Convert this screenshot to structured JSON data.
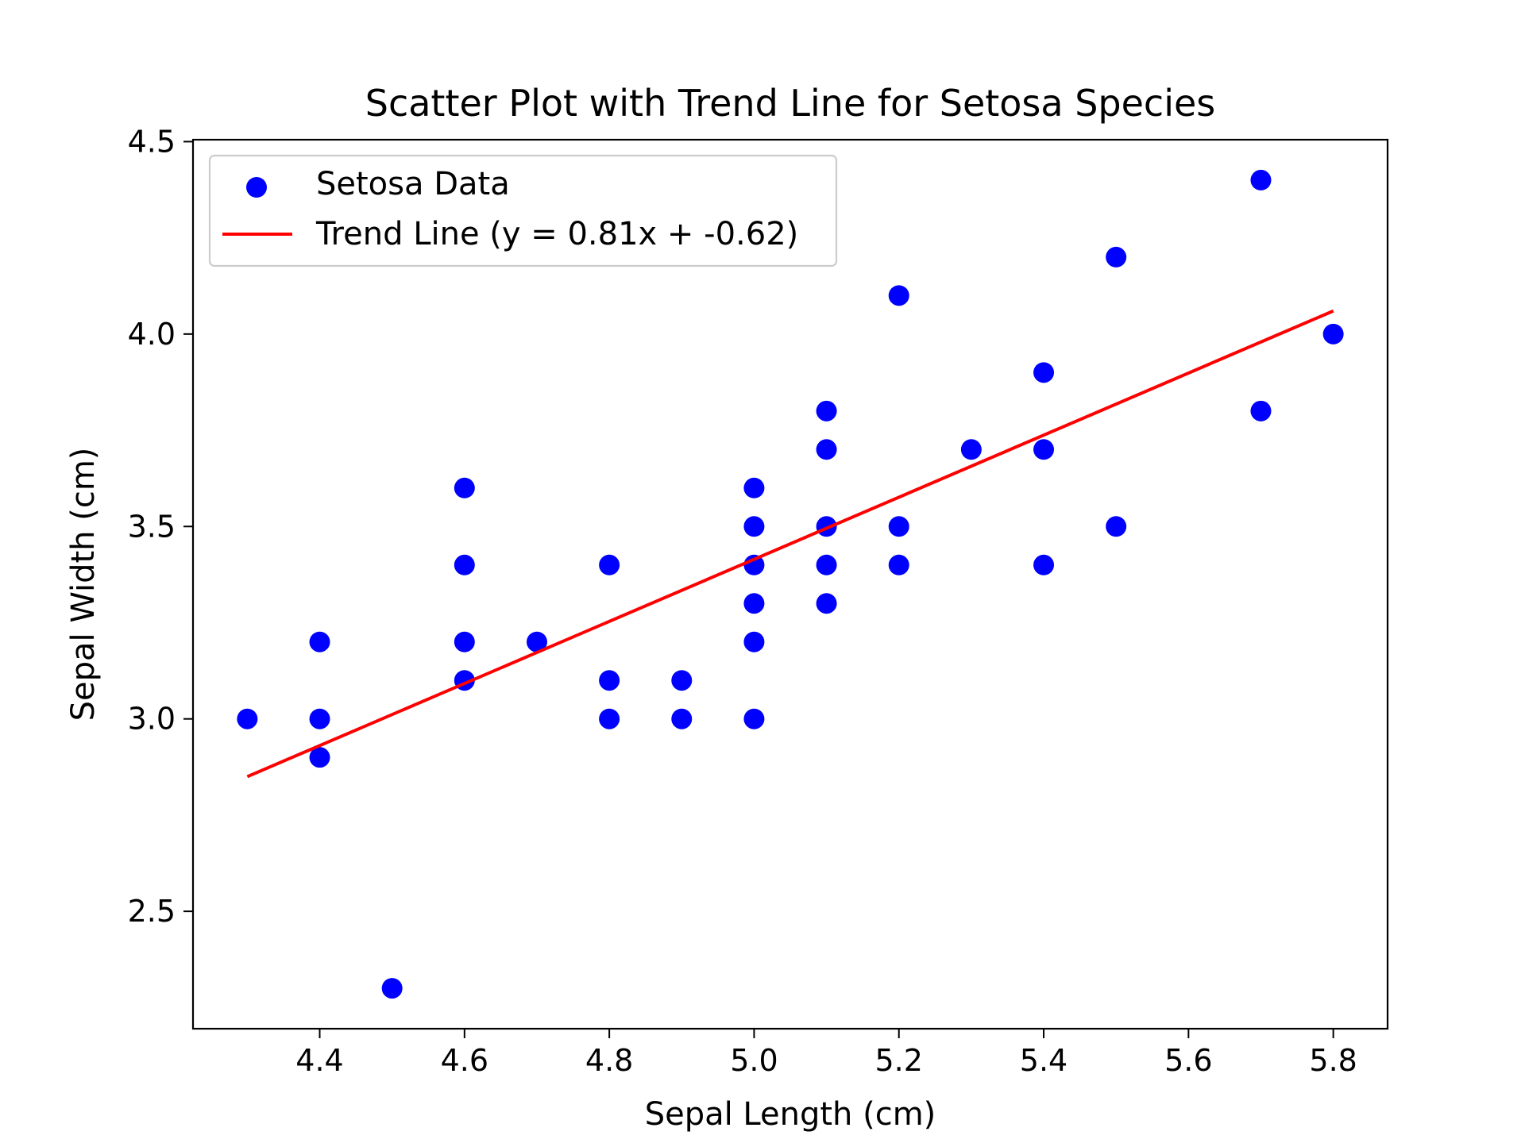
{
  "chart_data": {
    "type": "scatter",
    "title": "Scatter Plot with Trend Line for Setosa Species",
    "xlabel": "Sepal Length (cm)",
    "ylabel": "Sepal Width (cm)",
    "xlim": [
      4.225,
      5.875
    ],
    "ylim": [
      2.195,
      4.505
    ],
    "xticks": [
      4.4,
      4.6,
      4.8,
      5.0,
      5.2,
      5.4,
      5.6,
      5.8
    ],
    "yticks": [
      2.5,
      3.0,
      3.5,
      4.0,
      4.5
    ],
    "xtick_labels": [
      "4.4",
      "4.6",
      "4.8",
      "5.0",
      "5.2",
      "5.4",
      "5.6",
      "5.8"
    ],
    "ytick_labels": [
      "2.5",
      "3.0",
      "3.5",
      "4.0",
      "4.5"
    ],
    "grid": false,
    "legend_position": "top-left",
    "series": [
      {
        "name": "Setosa Data",
        "kind": "scatter",
        "color": "#0000ff",
        "points": [
          [
            4.3,
            3.0
          ],
          [
            4.4,
            3.2
          ],
          [
            4.4,
            3.0
          ],
          [
            4.4,
            2.9
          ],
          [
            4.5,
            2.3
          ],
          [
            4.6,
            3.6
          ],
          [
            4.6,
            3.4
          ],
          [
            4.6,
            3.2
          ],
          [
            4.6,
            3.1
          ],
          [
            4.7,
            3.2
          ],
          [
            4.8,
            3.4
          ],
          [
            4.8,
            3.1
          ],
          [
            4.8,
            3.0
          ],
          [
            4.9,
            3.1
          ],
          [
            4.9,
            3.0
          ],
          [
            5.0,
            3.6
          ],
          [
            5.0,
            3.5
          ],
          [
            5.0,
            3.4
          ],
          [
            5.0,
            3.3
          ],
          [
            5.0,
            3.2
          ],
          [
            5.0,
            3.0
          ],
          [
            5.1,
            3.8
          ],
          [
            5.1,
            3.7
          ],
          [
            5.1,
            3.5
          ],
          [
            5.1,
            3.4
          ],
          [
            5.1,
            3.3
          ],
          [
            5.2,
            4.1
          ],
          [
            5.2,
            3.5
          ],
          [
            5.2,
            3.4
          ],
          [
            5.3,
            3.7
          ],
          [
            5.4,
            3.9
          ],
          [
            5.4,
            3.7
          ],
          [
            5.4,
            3.4
          ],
          [
            5.5,
            4.2
          ],
          [
            5.5,
            3.5
          ],
          [
            5.7,
            4.4
          ],
          [
            5.7,
            3.8
          ],
          [
            5.8,
            4.0
          ]
        ]
      },
      {
        "name": "Trend Line (y = 0.81x + -0.62)",
        "kind": "line",
        "color": "#ff0000",
        "points": [
          [
            4.3,
            2.85
          ],
          [
            5.8,
            4.06
          ]
        ]
      }
    ]
  }
}
